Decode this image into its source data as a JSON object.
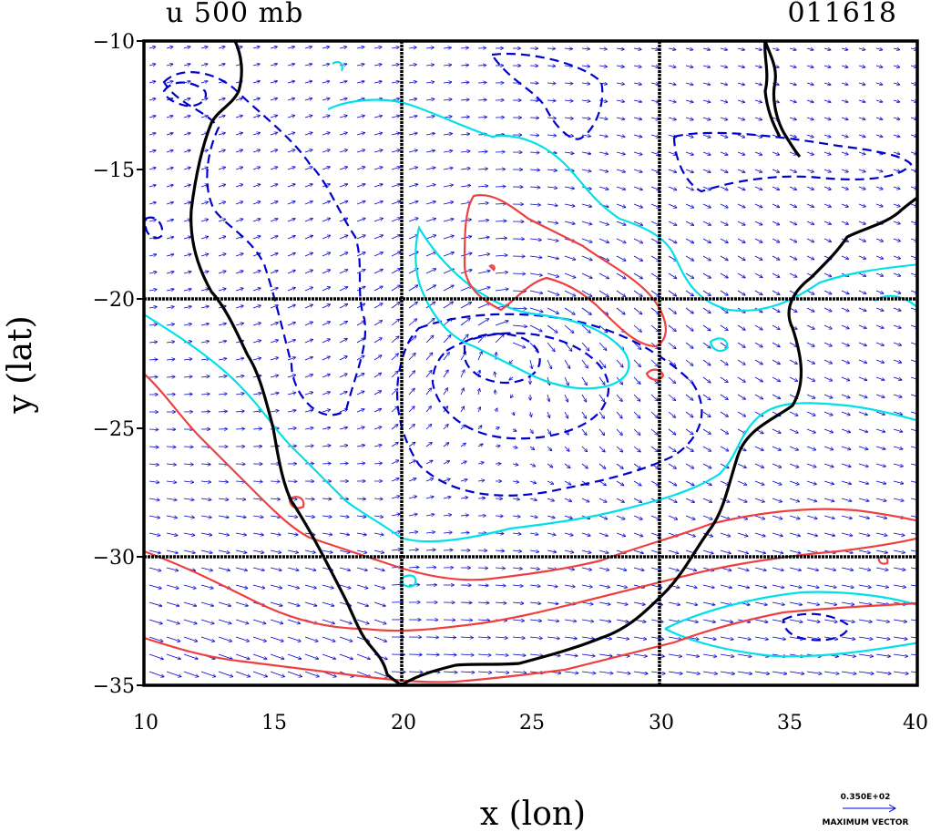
{
  "title_left": "u 500 mb",
  "title_right": "011618",
  "xlabel": "x (lon)",
  "ylabel": "y (lat)",
  "x_ticks": [
    "10",
    "15",
    "20",
    "25",
    "30",
    "35",
    "40"
  ],
  "y_ticks": [
    "−10",
    "−15",
    "−20",
    "−25",
    "−30",
    "−35"
  ],
  "legend": {
    "value": "0.350E+02",
    "label": "MAXIMUM VECTOR"
  },
  "colors": {
    "coast": "#000000",
    "grid": "#000000",
    "vectors": "#0000cc",
    "dashed": "#0000cc",
    "cyan": "#00e0e8",
    "red": "#ee4040"
  },
  "chart_data": {
    "type": "map",
    "variable": "u 500 mb",
    "timestamp": "011618",
    "xlim": [
      10,
      40
    ],
    "ylim": [
      -35,
      -10
    ],
    "gridlines_x": [
      20,
      30
    ],
    "gridlines_y": [
      -20,
      -30
    ],
    "max_vector": 35
  }
}
